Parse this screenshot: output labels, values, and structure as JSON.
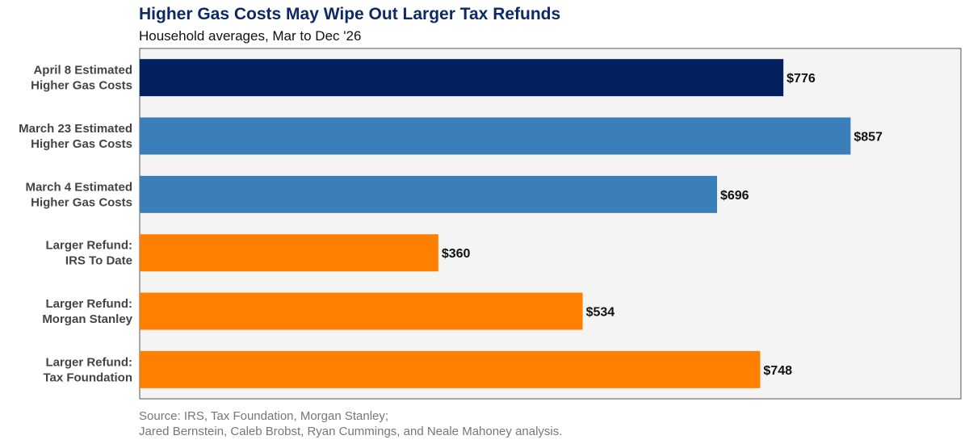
{
  "chart_data": {
    "type": "bar",
    "orientation": "horizontal",
    "title": "Higher Gas Costs May Wipe Out Larger Tax Refunds",
    "subtitle": "Household averages, Mar to Dec '26",
    "categories": [
      [
        "April 8 Estimated",
        "Higher Gas Costs"
      ],
      [
        "March 23 Estimated",
        "Higher Gas Costs"
      ],
      [
        "March 4 Estimated",
        "Higher Gas Costs"
      ],
      [
        "Larger Refund:",
        "IRS To Date"
      ],
      [
        "Larger Refund:",
        "Morgan Stanley"
      ],
      [
        "Larger Refund:",
        "Tax Foundation"
      ]
    ],
    "values": [
      776,
      857,
      696,
      360,
      534,
      748
    ],
    "value_labels": [
      "$776",
      "$857",
      "$696",
      "$360",
      "$534",
      "$748"
    ],
    "bar_colors": [
      "#03215f",
      "#3a7fba",
      "#3a7fba",
      "#ff8000",
      "#ff8000",
      "#ff8000"
    ],
    "xlim": [
      0,
      990
    ],
    "grid": false,
    "legend": "none",
    "source_lines": [
      "Source: IRS, Tax Foundation, Morgan Stanley;",
      "Jared Bernstein, Caleb Brobst, Ryan Cummings, and Neale Mahoney analysis."
    ]
  },
  "colors": {
    "title": "#0d2a66",
    "panel_background": "#f4f4f4",
    "panel_border": "#555555",
    "category_text": "#444444",
    "source_text": "#777777"
  }
}
